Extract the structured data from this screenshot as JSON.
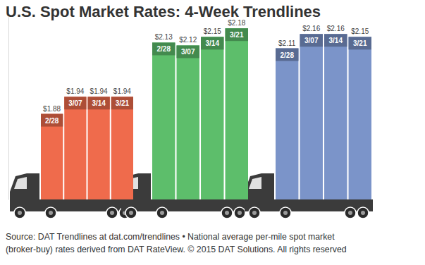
{
  "chart_data": {
    "type": "bar",
    "title": "U.S. Spot Market Rates: 4-Week Trendlines",
    "categories": [
      "2/28",
      "3/07",
      "3/14",
      "3/21"
    ],
    "series": [
      {
        "color": "#ef6b4c",
        "values": [
          1.88,
          1.94,
          1.94,
          1.94
        ],
        "value_labels": [
          "$1.88",
          "$1.94",
          "$1.94",
          "$1.94"
        ]
      },
      {
        "color": "#5dbe6b",
        "values": [
          2.13,
          2.12,
          2.15,
          2.18
        ],
        "value_labels": [
          "$2.13",
          "$2.12",
          "$2.15",
          "$2.18"
        ]
      },
      {
        "color": "#7b94c9",
        "values": [
          2.11,
          2.16,
          2.16,
          2.15
        ],
        "value_labels": [
          "$2.11",
          "$2.16",
          "$2.16",
          "$2.15"
        ]
      }
    ],
    "ylim": [
      1.58,
      2.22
    ],
    "data_labels": true,
    "tick_labels": false,
    "source": [
      "Source: DAT Trendlines at dat.com/trendlines • National average per-mile spot market",
      "(broker-buy) rates derived from DAT RateView. © 2015 DAT Solutions. All rights reserved"
    ]
  }
}
